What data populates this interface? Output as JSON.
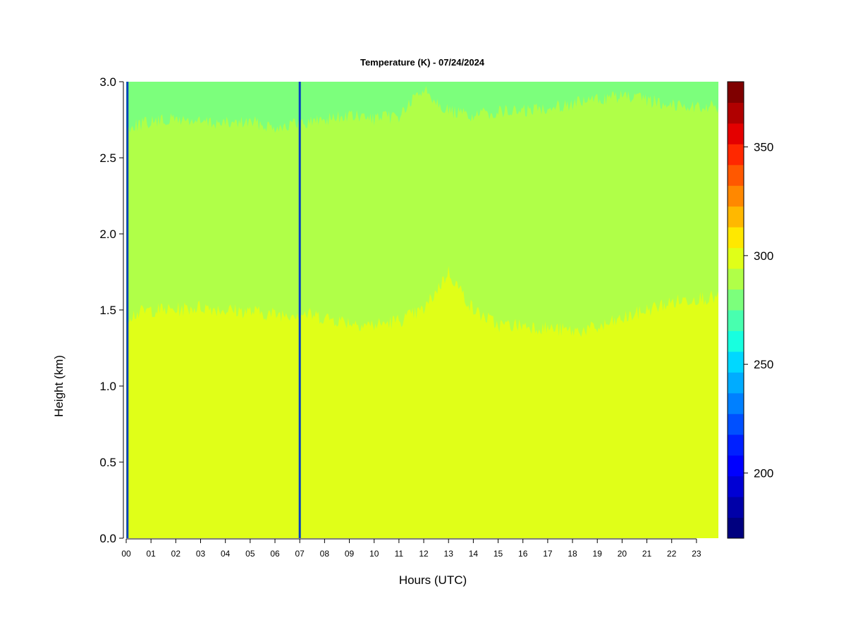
{
  "chart_data": {
    "type": "heatmap",
    "title": "Temperature (K) - 07/24/2024",
    "xlabel": "Hours (UTC)",
    "ylabel": "Height (km)",
    "x_ticks": [
      "00",
      "01",
      "02",
      "03",
      "04",
      "05",
      "06",
      "07",
      "08",
      "09",
      "10",
      "11",
      "12",
      "13",
      "14",
      "15",
      "16",
      "17",
      "18",
      "19",
      "20",
      "21",
      "22",
      "23"
    ],
    "xlim": [
      0,
      23.9
    ],
    "y_ticks": [
      "0.0",
      "0.5",
      "1.0",
      "1.5",
      "2.0",
      "2.5",
      "3.0"
    ],
    "ylim": [
      0,
      3.0
    ],
    "colorbar": {
      "ticks": [
        "200",
        "250",
        "300",
        "350"
      ],
      "range": [
        170,
        380
      ],
      "step": 10,
      "colors": [
        "#00007f",
        "#0000a8",
        "#0000d4",
        "#0000ff",
        "#0020ff",
        "#0050ff",
        "#0080ff",
        "#00acff",
        "#00d8ff",
        "#18ffdf",
        "#48ffaf",
        "#7cff7c",
        "#b0ff48",
        "#e0ff18",
        "#ffe800",
        "#ffb800",
        "#ff8800",
        "#ff5800",
        "#ff2800",
        "#e40000",
        "#b00000",
        "#7f0000"
      ]
    },
    "layers": [
      {
        "range_K": [
          290,
          300
        ],
        "color": "#e0ff18",
        "height_km": [
          0.0,
          1.45
        ]
      },
      {
        "range_K": [
          280,
          290
        ],
        "color": "#b0ff48",
        "height_km": [
          1.45,
          2.8
        ]
      },
      {
        "range_K": [
          270,
          280
        ],
        "color": "#7cff7c",
        "height_km": [
          2.8,
          3.0
        ]
      }
    ],
    "bottom_boundary_km": [
      1.46,
      1.5,
      1.5,
      1.52,
      1.5,
      1.49,
      1.47,
      1.48,
      1.45,
      1.42,
      1.4,
      1.43,
      1.5,
      1.75,
      1.5,
      1.4,
      1.4,
      1.38,
      1.36,
      1.38,
      1.44,
      1.5,
      1.55,
      1.58
    ],
    "top_boundary_km": [
      2.75,
      2.78,
      2.8,
      2.78,
      2.77,
      2.78,
      2.75,
      2.77,
      2.8,
      2.82,
      2.8,
      2.82,
      3.0,
      2.85,
      2.82,
      2.85,
      2.85,
      2.88,
      2.9,
      2.93,
      2.95,
      2.92,
      2.9,
      2.88
    ],
    "missing_data_columns_hr": [
      0.05,
      7.0
    ],
    "grid": false,
    "legend": "colorbar-right"
  }
}
